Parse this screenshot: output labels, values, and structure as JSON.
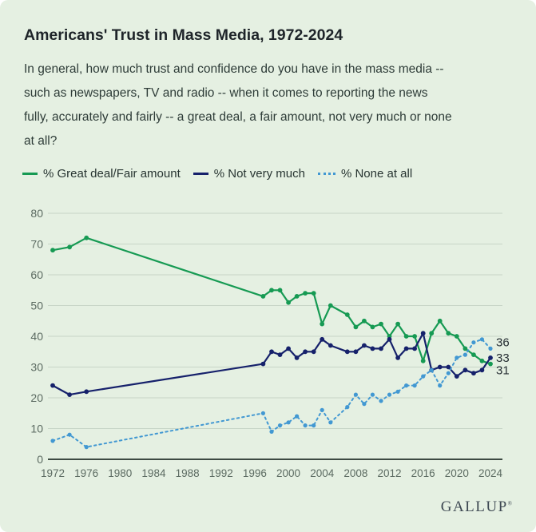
{
  "header": {
    "title": "Americans' Trust in Mass Media, 1972-2024",
    "subtitle_lines": [
      "In general, how much trust and confidence do you have in the mass media --",
      "such as newspapers, TV and radio -- when it comes to reporting the news",
      "fully, accurately and fairly -- a great deal, a fair amount, not very much or none",
      "at all?"
    ]
  },
  "legend": {
    "items": [
      {
        "label": "% Great deal/Fair amount",
        "color": "#169a53",
        "style": "solid"
      },
      {
        "label": "% Not very much",
        "color": "#16216b",
        "style": "solid"
      },
      {
        "label": "% None at all",
        "color": "#4298d2",
        "style": "dotted"
      }
    ]
  },
  "chart_data": {
    "type": "line",
    "title": "Americans' Trust in Mass Media, 1972-2024",
    "xlabel": "",
    "ylabel": "",
    "xlim": [
      1972,
      2024
    ],
    "ylim": [
      0,
      80
    ],
    "grid": "horizontal",
    "legend_position": "top",
    "x_ticks": [
      1972,
      1976,
      1980,
      1984,
      1988,
      1992,
      1996,
      2000,
      2004,
      2008,
      2012,
      2016,
      2020,
      2024
    ],
    "y_ticks": [
      0,
      10,
      20,
      30,
      40,
      50,
      60,
      70,
      80
    ],
    "series": [
      {
        "name": "% Great deal/Fair amount",
        "color": "#169a53",
        "line": "solid",
        "points": [
          [
            1972,
            68
          ],
          [
            1974,
            69
          ],
          [
            1976,
            72
          ],
          [
            1997,
            53
          ],
          [
            1998,
            55
          ],
          [
            1999,
            55
          ],
          [
            2000,
            51
          ],
          [
            2001,
            53
          ],
          [
            2002,
            54
          ],
          [
            2003,
            54
          ],
          [
            2004,
            44
          ],
          [
            2005,
            50
          ],
          [
            2007,
            47
          ],
          [
            2008,
            43
          ],
          [
            2009,
            45
          ],
          [
            2010,
            43
          ],
          [
            2011,
            44
          ],
          [
            2012,
            40
          ],
          [
            2013,
            44
          ],
          [
            2014,
            40
          ],
          [
            2015,
            40
          ],
          [
            2016,
            32
          ],
          [
            2017,
            41
          ],
          [
            2018,
            45
          ],
          [
            2019,
            41
          ],
          [
            2020,
            40
          ],
          [
            2021,
            36
          ],
          [
            2022,
            34
          ],
          [
            2023,
            32
          ],
          [
            2024,
            31
          ]
        ]
      },
      {
        "name": "% Not very much",
        "color": "#16216b",
        "line": "solid",
        "points": [
          [
            1972,
            24
          ],
          [
            1974,
            21
          ],
          [
            1976,
            22
          ],
          [
            1997,
            31
          ],
          [
            1998,
            35
          ],
          [
            1999,
            34
          ],
          [
            2000,
            36
          ],
          [
            2001,
            33
          ],
          [
            2002,
            35
          ],
          [
            2003,
            35
          ],
          [
            2004,
            39
          ],
          [
            2005,
            37
          ],
          [
            2007,
            35
          ],
          [
            2008,
            35
          ],
          [
            2009,
            37
          ],
          [
            2010,
            36
          ],
          [
            2011,
            36
          ],
          [
            2012,
            39
          ],
          [
            2013,
            33
          ],
          [
            2014,
            36
          ],
          [
            2015,
            36
          ],
          [
            2016,
            41
          ],
          [
            2017,
            29
          ],
          [
            2018,
            30
          ],
          [
            2019,
            30
          ],
          [
            2020,
            27
          ],
          [
            2021,
            29
          ],
          [
            2022,
            28
          ],
          [
            2023,
            29
          ],
          [
            2024,
            33
          ]
        ]
      },
      {
        "name": "% None at all",
        "color": "#4298d2",
        "line": "dotted",
        "points": [
          [
            1972,
            6
          ],
          [
            1974,
            8
          ],
          [
            1976,
            4
          ],
          [
            1997,
            15
          ],
          [
            1998,
            9
          ],
          [
            1999,
            11
          ],
          [
            2000,
            12
          ],
          [
            2001,
            14
          ],
          [
            2002,
            11
          ],
          [
            2003,
            11
          ],
          [
            2004,
            16
          ],
          [
            2005,
            12
          ],
          [
            2007,
            17
          ],
          [
            2008,
            21
          ],
          [
            2009,
            18
          ],
          [
            2010,
            21
          ],
          [
            2011,
            19
          ],
          [
            2012,
            21
          ],
          [
            2013,
            22
          ],
          [
            2014,
            24
          ],
          [
            2015,
            24
          ],
          [
            2016,
            27
          ],
          [
            2017,
            29
          ],
          [
            2018,
            24
          ],
          [
            2019,
            28
          ],
          [
            2020,
            33
          ],
          [
            2021,
            34
          ],
          [
            2022,
            38
          ],
          [
            2023,
            39
          ],
          [
            2024,
            36
          ]
        ]
      }
    ],
    "end_labels": [
      {
        "text": "36",
        "anchor_value": 38
      },
      {
        "text": "33",
        "anchor_value": 33
      },
      {
        "text": "31",
        "anchor_value": 29
      }
    ],
    "colors": {
      "background": "#e5f0e2",
      "gridline": "#c7d5c7",
      "axis_line": "#3d4a42",
      "tick_label": "#5b6a61",
      "end_label": "#262e33"
    }
  },
  "footer": {
    "logo": "GALLUP",
    "trademark": "®"
  }
}
